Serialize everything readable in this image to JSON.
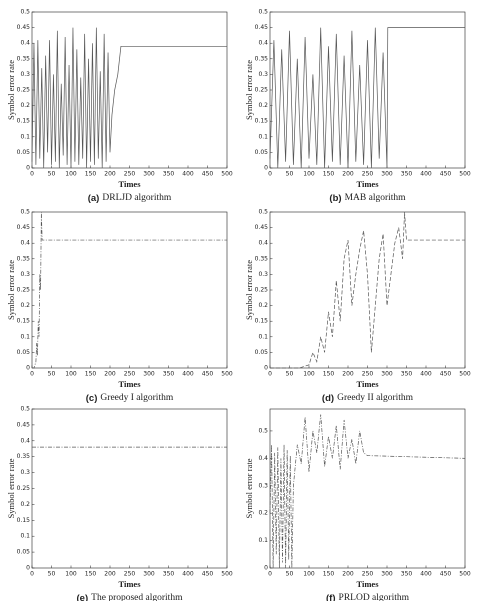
{
  "chart_data": [
    {
      "type": "line",
      "label": "(a)",
      "title": "DRLJD algorithm",
      "xlabel": "Times",
      "ylabel": "Symbol error rate",
      "xlim": [
        0,
        500
      ],
      "xticks": [
        0,
        50,
        100,
        150,
        200,
        250,
        300,
        350,
        400,
        450,
        500
      ],
      "ylim": [
        0,
        0.5
      ],
      "yticks": [
        0,
        0.05,
        0.1,
        0.15,
        0.2,
        0.25,
        0.3,
        0.35,
        0.4,
        0.45,
        0.5
      ],
      "x": [
        0,
        5,
        10,
        15,
        20,
        25,
        30,
        35,
        40,
        45,
        50,
        55,
        60,
        65,
        70,
        75,
        80,
        85,
        90,
        95,
        100,
        105,
        110,
        115,
        120,
        125,
        130,
        135,
        140,
        145,
        150,
        155,
        160,
        165,
        170,
        175,
        180,
        185,
        190,
        195,
        200,
        205,
        212,
        220,
        228,
        500
      ],
      "series": [
        {
          "color": "#555555",
          "line_style": "solid",
          "values": [
            0.02,
            0.4,
            0.01,
            0.41,
            0.03,
            0.32,
            0.0,
            0.36,
            0.05,
            0.41,
            0.01,
            0.3,
            0.02,
            0.44,
            0.0,
            0.27,
            0.04,
            0.42,
            0.01,
            0.33,
            0.0,
            0.45,
            0.02,
            0.38,
            0.01,
            0.29,
            0.03,
            0.43,
            0.0,
            0.35,
            0.02,
            0.4,
            0.01,
            0.45,
            0.03,
            0.31,
            0.0,
            0.43,
            0.02,
            0.37,
            0.05,
            0.17,
            0.25,
            0.3,
            0.39,
            0.39
          ]
        }
      ]
    },
    {
      "type": "line",
      "label": "(b)",
      "title": "MAB algorithm",
      "xlabel": "Times",
      "ylabel": "Symbol error rate",
      "xlim": [
        0,
        500
      ],
      "xticks": [
        0,
        50,
        100,
        150,
        200,
        250,
        300,
        350,
        400,
        450,
        500
      ],
      "ylim": [
        0,
        0.5
      ],
      "yticks": [
        0,
        0.05,
        0.1,
        0.15,
        0.2,
        0.25,
        0.3,
        0.35,
        0.4,
        0.45,
        0.5
      ],
      "x": [
        0,
        10,
        20,
        30,
        40,
        50,
        60,
        70,
        80,
        90,
        100,
        110,
        120,
        130,
        140,
        150,
        160,
        170,
        180,
        190,
        200,
        210,
        220,
        230,
        240,
        250,
        260,
        270,
        280,
        290,
        300,
        302,
        500
      ],
      "series": [
        {
          "color": "#555555",
          "line_style": "solid",
          "values": [
            0.03,
            0.41,
            0.0,
            0.38,
            0.02,
            0.44,
            0.01,
            0.35,
            0.0,
            0.42,
            0.03,
            0.3,
            0.01,
            0.45,
            0.0,
            0.39,
            0.02,
            0.43,
            0.01,
            0.36,
            0.0,
            0.44,
            0.02,
            0.33,
            0.01,
            0.41,
            0.0,
            0.45,
            0.03,
            0.37,
            0.0,
            0.45,
            0.45
          ]
        }
      ]
    },
    {
      "type": "line",
      "label": "(c)",
      "title": "Greedy I algorithm",
      "xlabel": "Times",
      "ylabel": "Symbol error rate",
      "xlim": [
        0,
        500
      ],
      "xticks": [
        0,
        50,
        100,
        150,
        200,
        250,
        300,
        350,
        400,
        450,
        500
      ],
      "ylim": [
        0,
        0.5
      ],
      "yticks": [
        0,
        0.05,
        0.1,
        0.15,
        0.2,
        0.25,
        0.3,
        0.35,
        0.4,
        0.45,
        0.5
      ],
      "x": [
        0,
        5,
        10,
        12,
        14,
        16,
        18,
        20,
        22,
        24,
        26,
        500
      ],
      "series": [
        {
          "color": "#555555",
          "line_style": "dashdot",
          "values": [
            0,
            0,
            0.02,
            0.08,
            0.04,
            0.15,
            0.1,
            0.3,
            0.25,
            0.5,
            0.41,
            0.41
          ]
        }
      ]
    },
    {
      "type": "line",
      "label": "(d)",
      "title": "Greedy II algorithm",
      "xlabel": "Times",
      "ylabel": "Symbol error rate",
      "xlim": [
        0,
        500
      ],
      "xticks": [
        0,
        50,
        100,
        150,
        200,
        250,
        300,
        350,
        400,
        450,
        500
      ],
      "ylim": [
        0,
        0.5
      ],
      "yticks": [
        0,
        0.05,
        0.1,
        0.15,
        0.2,
        0.25,
        0.3,
        0.35,
        0.4,
        0.45,
        0.5
      ],
      "x": [
        0,
        75,
        100,
        110,
        120,
        130,
        140,
        150,
        160,
        170,
        180,
        190,
        200,
        210,
        220,
        230,
        240,
        250,
        260,
        270,
        280,
        290,
        300,
        310,
        320,
        330,
        340,
        345,
        350,
        500
      ],
      "series": [
        {
          "color": "#555555",
          "line_style": "dashed",
          "values": [
            0,
            0,
            0.01,
            0.05,
            0.02,
            0.1,
            0.05,
            0.18,
            0.1,
            0.28,
            0.15,
            0.35,
            0.41,
            0.2,
            0.3,
            0.38,
            0.44,
            0.3,
            0.05,
            0.2,
            0.35,
            0.43,
            0.2,
            0.3,
            0.4,
            0.45,
            0.35,
            0.5,
            0.41,
            0.41
          ]
        }
      ]
    },
    {
      "type": "line",
      "label": "(e)",
      "title": "The proposed algorithm",
      "xlabel": "Times",
      "ylabel": "Symbol error rate",
      "xlim": [
        0,
        500
      ],
      "xticks": [
        0,
        50,
        100,
        150,
        200,
        250,
        300,
        350,
        400,
        450,
        500
      ],
      "ylim": [
        0,
        0.5
      ],
      "yticks": [
        0,
        0.05,
        0.1,
        0.15,
        0.2,
        0.25,
        0.3,
        0.35,
        0.4,
        0.45,
        0.5
      ],
      "x": [
        0,
        500
      ],
      "series": [
        {
          "color": "#555555",
          "line_style": "dashdot",
          "values": [
            0.38,
            0.38
          ]
        }
      ]
    },
    {
      "type": "line",
      "label": "(f)",
      "title": "PRLOD algorithm",
      "xlabel": "Times",
      "ylabel": "Symbol error rate",
      "xlim": [
        0,
        500
      ],
      "xticks": [
        0,
        50,
        100,
        150,
        200,
        250,
        300,
        350,
        400,
        450,
        500
      ],
      "ylim": [
        0,
        0.58
      ],
      "yticks": [
        0,
        0.1,
        0.2,
        0.3,
        0.4,
        0.5
      ],
      "x": [
        0,
        4,
        8,
        12,
        16,
        20,
        24,
        28,
        32,
        36,
        40,
        44,
        48,
        52,
        56,
        60,
        70,
        80,
        90,
        100,
        110,
        120,
        130,
        140,
        150,
        160,
        170,
        180,
        190,
        200,
        210,
        220,
        230,
        240,
        250,
        500
      ],
      "series": [
        {
          "color": "#555555",
          "line_style": "dashdot",
          "values": [
            0.2,
            0.45,
            0.0,
            0.42,
            0.05,
            0.44,
            0.0,
            0.4,
            0.02,
            0.45,
            0.0,
            0.43,
            0.03,
            0.41,
            0.0,
            0.3,
            0.45,
            0.38,
            0.55,
            0.35,
            0.5,
            0.42,
            0.56,
            0.37,
            0.48,
            0.4,
            0.52,
            0.36,
            0.54,
            0.4,
            0.47,
            0.38,
            0.5,
            0.42,
            0.41,
            0.4
          ]
        }
      ]
    }
  ]
}
